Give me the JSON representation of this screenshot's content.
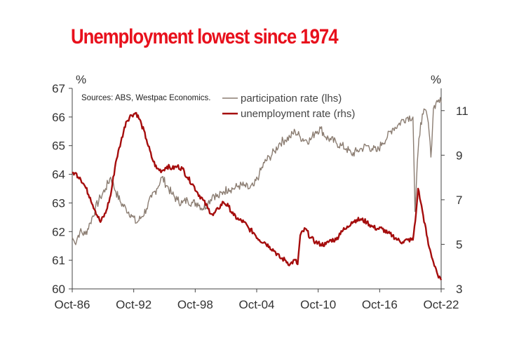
{
  "chart_data": {
    "type": "line",
    "title": "Unemployment lowest since 1974",
    "source": "Sources: ABS, Westpac Economics.",
    "left_axis": {
      "unit": "%",
      "ticks": [
        "60",
        "61",
        "62",
        "63",
        "64",
        "65",
        "66",
        "67"
      ],
      "ylim": [
        60,
        67
      ]
    },
    "right_axis": {
      "unit": "%",
      "ticks": [
        "3",
        "5",
        "7",
        "9",
        "11"
      ],
      "ylim": [
        3,
        12
      ]
    },
    "x_axis": {
      "ticks": [
        "Oct-86",
        "Oct-92",
        "Oct-98",
        "Oct-04",
        "Oct-10",
        "Oct-16",
        "Oct-22"
      ],
      "xlim": [
        1986.75,
        2022.75
      ]
    },
    "series": [
      {
        "name": "participation rate (lhs)",
        "axis": "left",
        "color": "#8b7d72",
        "points": [
          [
            1986.75,
            61.8
          ],
          [
            1987.0,
            61.6
          ],
          [
            1987.5,
            62.0
          ],
          [
            1988.0,
            61.9
          ],
          [
            1988.5,
            62.3
          ],
          [
            1989.0,
            62.8
          ],
          [
            1989.5,
            63.2
          ],
          [
            1990.0,
            63.5
          ],
          [
            1990.5,
            63.9
          ],
          [
            1991.0,
            63.4
          ],
          [
            1991.5,
            63.0
          ],
          [
            1992.0,
            62.8
          ],
          [
            1992.5,
            62.6
          ],
          [
            1993.0,
            62.3
          ],
          [
            1993.5,
            62.5
          ],
          [
            1994.0,
            62.8
          ],
          [
            1994.5,
            63.2
          ],
          [
            1995.0,
            63.5
          ],
          [
            1995.5,
            63.9
          ],
          [
            1996.0,
            63.6
          ],
          [
            1996.5,
            63.3
          ],
          [
            1997.0,
            63.1
          ],
          [
            1997.5,
            63.0
          ],
          [
            1998.0,
            63.1
          ],
          [
            1998.5,
            63.0
          ],
          [
            1999.0,
            63.0
          ],
          [
            1999.5,
            62.8
          ],
          [
            2000.0,
            63.0
          ],
          [
            2000.5,
            63.3
          ],
          [
            2001.0,
            63.2
          ],
          [
            2001.5,
            63.4
          ],
          [
            2002.0,
            63.5
          ],
          [
            2002.5,
            63.5
          ],
          [
            2003.0,
            63.6
          ],
          [
            2003.5,
            63.6
          ],
          [
            2004.0,
            63.5
          ],
          [
            2004.5,
            63.6
          ],
          [
            2005.0,
            64.0
          ],
          [
            2005.5,
            64.4
          ],
          [
            2006.0,
            64.6
          ],
          [
            2006.5,
            64.8
          ],
          [
            2007.0,
            65.1
          ],
          [
            2007.5,
            65.2
          ],
          [
            2008.0,
            65.3
          ],
          [
            2008.5,
            65.5
          ],
          [
            2009.0,
            65.3
          ],
          [
            2009.5,
            65.2
          ],
          [
            2010.0,
            65.2
          ],
          [
            2010.5,
            65.5
          ],
          [
            2011.0,
            65.6
          ],
          [
            2011.5,
            65.3
          ],
          [
            2012.0,
            65.2
          ],
          [
            2012.5,
            65.1
          ],
          [
            2013.0,
            65.0
          ],
          [
            2013.5,
            64.9
          ],
          [
            2014.0,
            64.7
          ],
          [
            2014.5,
            64.8
          ],
          [
            2015.0,
            64.9
          ],
          [
            2015.5,
            65.0
          ],
          [
            2016.0,
            64.9
          ],
          [
            2016.5,
            64.8
          ],
          [
            2017.0,
            65.1
          ],
          [
            2017.5,
            65.3
          ],
          [
            2018.0,
            65.6
          ],
          [
            2018.5,
            65.7
          ],
          [
            2019.0,
            65.9
          ],
          [
            2019.5,
            66.0
          ],
          [
            2020.0,
            66.0
          ],
          [
            2020.2,
            62.7
          ],
          [
            2020.5,
            64.8
          ],
          [
            2020.75,
            65.8
          ],
          [
            2021.0,
            66.1
          ],
          [
            2021.3,
            66.2
          ],
          [
            2021.5,
            65.8
          ],
          [
            2021.75,
            64.6
          ],
          [
            2022.0,
            66.3
          ],
          [
            2022.25,
            66.5
          ],
          [
            2022.5,
            66.6
          ],
          [
            2022.75,
            66.5
          ]
        ]
      },
      {
        "name": "unemployment rate (rhs)",
        "axis": "right",
        "color": "#a50d0d",
        "points": [
          [
            1986.75,
            8.2
          ],
          [
            1987.0,
            8.2
          ],
          [
            1987.5,
            8.0
          ],
          [
            1988.0,
            7.6
          ],
          [
            1988.5,
            7.1
          ],
          [
            1989.0,
            6.5
          ],
          [
            1989.5,
            6.0
          ],
          [
            1990.0,
            6.4
          ],
          [
            1990.5,
            7.2
          ],
          [
            1991.0,
            8.7
          ],
          [
            1991.5,
            9.6
          ],
          [
            1992.0,
            10.5
          ],
          [
            1992.5,
            10.8
          ],
          [
            1993.0,
            10.9
          ],
          [
            1993.5,
            10.4
          ],
          [
            1994.0,
            9.7
          ],
          [
            1994.5,
            8.9
          ],
          [
            1995.0,
            8.4
          ],
          [
            1995.5,
            8.3
          ],
          [
            1996.0,
            8.5
          ],
          [
            1996.5,
            8.4
          ],
          [
            1997.0,
            8.5
          ],
          [
            1997.5,
            8.4
          ],
          [
            1998.0,
            8.0
          ],
          [
            1998.5,
            7.7
          ],
          [
            1999.0,
            7.3
          ],
          [
            1999.5,
            7.0
          ],
          [
            2000.0,
            6.6
          ],
          [
            2000.5,
            6.3
          ],
          [
            2001.0,
            6.6
          ],
          [
            2001.5,
            6.9
          ],
          [
            2002.0,
            6.7
          ],
          [
            2002.5,
            6.3
          ],
          [
            2003.0,
            6.1
          ],
          [
            2003.5,
            6.0
          ],
          [
            2004.0,
            5.7
          ],
          [
            2004.5,
            5.5
          ],
          [
            2005.0,
            5.2
          ],
          [
            2005.5,
            5.1
          ],
          [
            2006.0,
            4.9
          ],
          [
            2006.5,
            4.7
          ],
          [
            2007.0,
            4.4
          ],
          [
            2007.5,
            4.3
          ],
          [
            2008.0,
            4.1
          ],
          [
            2008.5,
            4.3
          ],
          [
            2008.75,
            4.1
          ],
          [
            2009.0,
            5.4
          ],
          [
            2009.5,
            5.7
          ],
          [
            2010.0,
            5.3
          ],
          [
            2010.5,
            5.1
          ],
          [
            2011.0,
            5.0
          ],
          [
            2011.5,
            5.0
          ],
          [
            2012.0,
            5.2
          ],
          [
            2012.5,
            5.2
          ],
          [
            2013.0,
            5.6
          ],
          [
            2013.5,
            5.7
          ],
          [
            2014.0,
            6.0
          ],
          [
            2014.5,
            6.1
          ],
          [
            2015.0,
            6.1
          ],
          [
            2015.5,
            6.0
          ],
          [
            2016.0,
            5.8
          ],
          [
            2016.5,
            5.7
          ],
          [
            2017.0,
            5.7
          ],
          [
            2017.5,
            5.5
          ],
          [
            2018.0,
            5.4
          ],
          [
            2018.5,
            5.2
          ],
          [
            2019.0,
            5.1
          ],
          [
            2019.5,
            5.2
          ],
          [
            2020.0,
            5.2
          ],
          [
            2020.3,
            6.4
          ],
          [
            2020.5,
            7.5
          ],
          [
            2020.75,
            6.9
          ],
          [
            2021.0,
            6.3
          ],
          [
            2021.5,
            5.0
          ],
          [
            2021.75,
            4.6
          ],
          [
            2022.0,
            4.2
          ],
          [
            2022.25,
            3.9
          ],
          [
            2022.5,
            3.5
          ],
          [
            2022.75,
            3.4
          ]
        ]
      }
    ]
  }
}
